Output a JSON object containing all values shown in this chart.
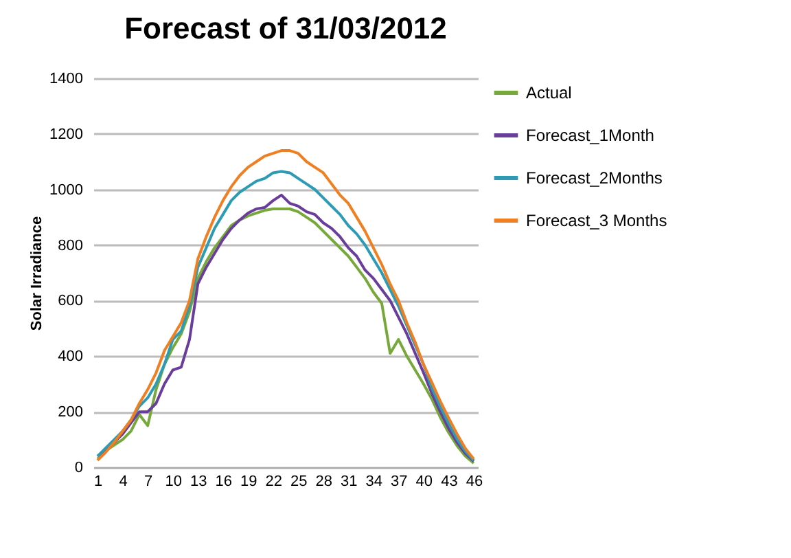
{
  "chart_data": {
    "type": "line",
    "title": "Forecast of 31/03/2012",
    "ylabel": "Solar Irradiance",
    "categories": [
      "1",
      null,
      null,
      "4",
      null,
      null,
      "7",
      null,
      null,
      "10",
      null,
      null,
      "13",
      null,
      null,
      "16",
      null,
      null,
      "19",
      null,
      null,
      "22",
      null,
      null,
      "25",
      null,
      null,
      "28",
      null,
      null,
      "31",
      null,
      null,
      "34",
      null,
      null,
      "37",
      null,
      null,
      "40",
      null,
      null,
      "43",
      null,
      null,
      "46"
    ],
    "series": [
      {
        "name": "Actual",
        "color": "#77a83a",
        "values": [
          30,
          60,
          80,
          100,
          130,
          190,
          150,
          280,
          370,
          430,
          480,
          560,
          680,
          740,
          790,
          830,
          870,
          890,
          905,
          915,
          925,
          930,
          930,
          930,
          920,
          900,
          880,
          850,
          820,
          790,
          760,
          720,
          680,
          630,
          590,
          410,
          460,
          400,
          350,
          300,
          245,
          180,
          125,
          78,
          40,
          15
        ]
      },
      {
        "name": "Forecast_1Month",
        "color": "#6a3d9a",
        "values": [
          40,
          65,
          90,
          120,
          160,
          200,
          200,
          230,
          300,
          350,
          360,
          460,
          660,
          720,
          770,
          820,
          860,
          890,
          915,
          930,
          935,
          960,
          980,
          950,
          940,
          920,
          910,
          880,
          860,
          830,
          790,
          760,
          710,
          680,
          640,
          600,
          540,
          480,
          410,
          340,
          265,
          200,
          140,
          90,
          50,
          22
        ]
      },
      {
        "name": "Forecast_2Months",
        "color": "#2e9bb5",
        "values": [
          40,
          70,
          100,
          130,
          170,
          220,
          250,
          300,
          370,
          460,
          490,
          580,
          720,
          790,
          860,
          910,
          960,
          990,
          1010,
          1030,
          1040,
          1060,
          1065,
          1060,
          1040,
          1020,
          1000,
          970,
          940,
          910,
          870,
          840,
          800,
          750,
          700,
          640,
          580,
          510,
          440,
          370,
          285,
          218,
          158,
          102,
          58,
          25
        ]
      },
      {
        "name": "Forecast_3 Months",
        "color": "#f07f22",
        "values": [
          25,
          55,
          90,
          130,
          170,
          230,
          280,
          340,
          420,
          470,
          520,
          600,
          750,
          830,
          900,
          960,
          1010,
          1050,
          1080,
          1100,
          1120,
          1130,
          1140,
          1140,
          1130,
          1100,
          1080,
          1060,
          1020,
          980,
          950,
          900,
          850,
          790,
          730,
          660,
          600,
          520,
          450,
          370,
          305,
          238,
          178,
          120,
          68,
          30
        ]
      }
    ],
    "ylim": [
      0,
      1400
    ],
    "yticks": [
      0,
      200,
      400,
      600,
      800,
      1000,
      1200,
      1400
    ],
    "grid": "y",
    "legend": "right",
    "marker": "none",
    "line_style": "solid"
  }
}
